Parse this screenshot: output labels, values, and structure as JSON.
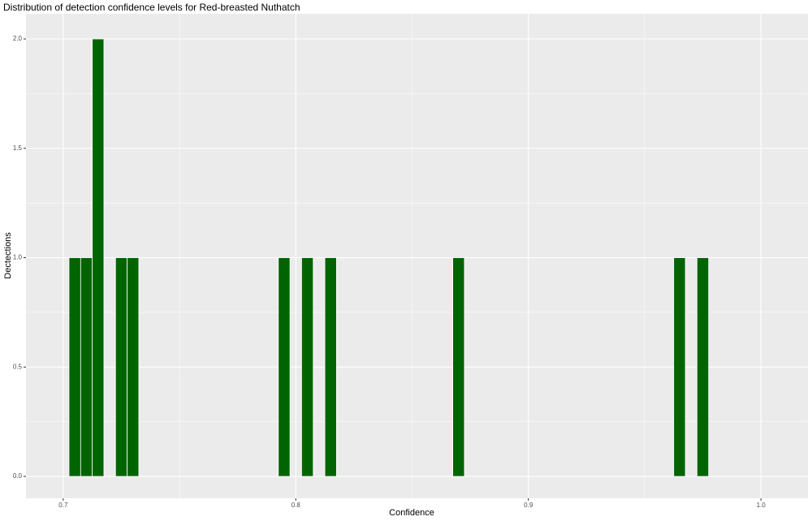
{
  "chart_data": {
    "type": "histogram",
    "title": "Distribution of detection confidence levels for Red-breasted Nuthatch",
    "x_label": "Confidence",
    "y_label": "Dectections",
    "bins": [
      0.7025,
      0.7075,
      0.7125,
      0.7175,
      0.7225,
      0.7275,
      0.7325,
      0.7375,
      0.7425,
      0.7475,
      0.7525,
      0.7575,
      0.7625,
      0.7675,
      0.7725,
      0.7775,
      0.7825,
      0.7875,
      0.7925,
      0.7975,
      0.8025,
      0.8075,
      0.8125,
      0.8175,
      0.8225,
      0.8275,
      0.8325,
      0.8375,
      0.8425,
      0.8475,
      0.8525,
      0.8575,
      0.8625,
      0.8675,
      0.8725,
      0.8775,
      0.8825,
      0.8875,
      0.8925,
      0.8975,
      0.9025,
      0.9075,
      0.9125,
      0.9175,
      0.9225,
      0.9275,
      0.9325,
      0.9375,
      0.9425,
      0.9475,
      0.9525,
      0.9575,
      0.9625,
      0.9675,
      0.9725,
      0.9775
    ],
    "values": [
      1,
      1,
      2,
      0,
      1,
      1,
      0,
      0,
      0,
      0,
      0,
      0,
      0,
      0,
      0,
      0,
      0,
      0,
      1,
      0,
      1,
      0,
      1,
      0,
      0,
      0,
      0,
      0,
      0,
      0,
      0,
      0,
      0,
      1,
      0,
      0,
      0,
      0,
      0,
      0,
      0,
      0,
      0,
      0,
      0,
      0,
      0,
      0,
      0,
      0,
      0,
      0,
      1,
      0,
      1
    ],
    "color": "#006400",
    "xlim": [
      0.684,
      1.0202
    ],
    "ylim": [
      -0.1,
      2.115
    ],
    "xticks": [
      0.7,
      0.8,
      0.9,
      {
        "value": 1,
        "label": "1.0"
      }
    ],
    "yticks": [
      {
        "value": 0,
        "label": "0.0"
      },
      0.5,
      {
        "value": 1,
        "label": "1.0"
      },
      1.5,
      {
        "value": 2,
        "label": "2.0"
      }
    ],
    "grid": true,
    "minor_grid": true
  }
}
